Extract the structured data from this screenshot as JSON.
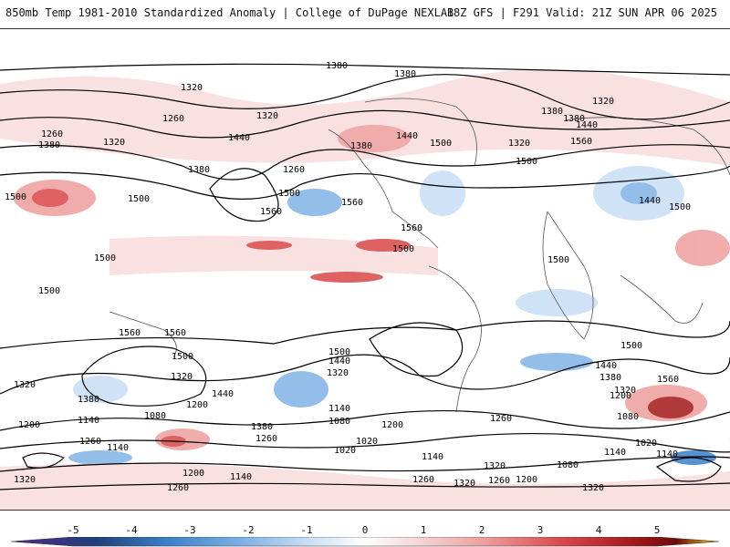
{
  "header": {
    "left_title": "850mb Temp 1981-2010 Standardized Anomaly | College of DuPage NEXLAB",
    "right_title": "18Z GFS | F291 Valid: 21Z SUN APR 06 2025"
  },
  "colorbar": {
    "ticks": [
      "-5",
      "-4",
      "-3",
      "-2",
      "-1",
      "0",
      "1",
      "2",
      "3",
      "4",
      "5"
    ],
    "colors": [
      "#4a2a86",
      "#1f3f7a",
      "#3a7fc8",
      "#7fb3e6",
      "#c8def5",
      "#ffffff",
      "#f6d2d2",
      "#ee9d9d",
      "#d94747",
      "#a31818",
      "#6e0a0a",
      "#e8b400"
    ]
  },
  "contours": {
    "labels": [
      "1380",
      "1320",
      "1260",
      "1380",
      "1320",
      "1260",
      "1380",
      "1440",
      "1500",
      "1560",
      "1260",
      "1500",
      "1500",
      "1560",
      "1320",
      "1380",
      "1440",
      "1500",
      "1380",
      "1320",
      "1380",
      "1440",
      "1500",
      "1560",
      "1320",
      "1380",
      "1440",
      "1500",
      "1560",
      "1500",
      "1500",
      "1500",
      "1500",
      "1560",
      "1560",
      "1500",
      "1440",
      "1320",
      "1200",
      "1140",
      "1080",
      "1260",
      "1380",
      "1320",
      "1200",
      "1140",
      "1260",
      "1380",
      "1500",
      "1440",
      "1140",
      "1080",
      "1020",
      "1200",
      "1260",
      "1320",
      "1140",
      "1200",
      "1260",
      "1320",
      "1020",
      "1080",
      "1380",
      "1440",
      "1500",
      "1560",
      "1320",
      "1200",
      "1080",
      "1140",
      "1260",
      "1320",
      "1200",
      "1140",
      "1320",
      "1260",
      "1020",
      "1140",
      "1320"
    ]
  }
}
